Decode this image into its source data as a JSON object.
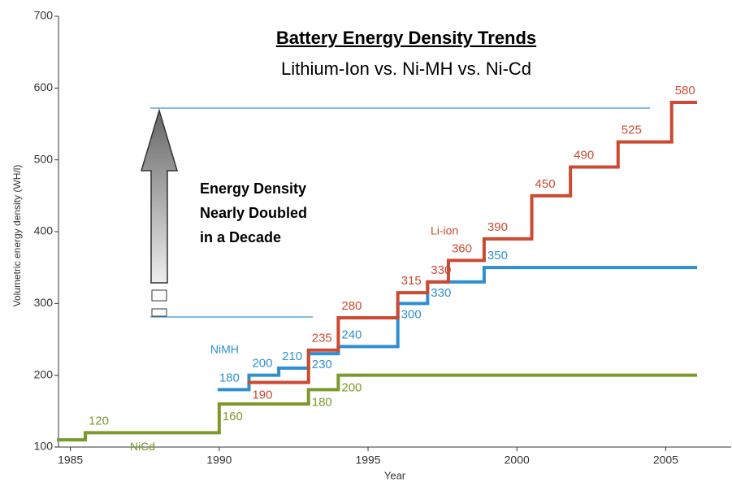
{
  "chart_data": {
    "type": "step",
    "title": "Battery Energy Density Trends",
    "subtitle": "Lithium-Ion vs. Ni-MH vs. Ni-Cd",
    "x_label": "Year",
    "y_label": "Volumetric energy density (WH/l)",
    "annotation": [
      "Energy Density",
      "Nearly Doubled",
      "in a Decade"
    ],
    "xlim": [
      1984.6,
      2007.2
    ],
    "xticks": [
      1985,
      1990,
      1995,
      2000,
      2005
    ],
    "ylim": [
      100,
      700
    ],
    "yticks": [
      100,
      200,
      300,
      400,
      500,
      600,
      700
    ],
    "step_end": 2006,
    "series": [
      {
        "name": "NiCd",
        "color": "#7b9a2b",
        "x": [
          1984.6,
          1985.5,
          1990,
          1993,
          1994
        ],
        "values": [
          110,
          120,
          160,
          180,
          200
        ],
        "value_labels": [
          null,
          "120",
          "160",
          "180",
          "200"
        ]
      },
      {
        "name": "NiMH",
        "color": "#2f8fd2",
        "x": [
          1990,
          1991,
          1992,
          1993,
          1994,
          1996,
          1997,
          1998.9
        ],
        "values": [
          180,
          200,
          210,
          230,
          240,
          300,
          330,
          350
        ]
      },
      {
        "name": "Li-ion",
        "color": "#cc4a32",
        "x": [
          1991,
          1993,
          1994,
          1996,
          1997,
          1997.7,
          1998.9,
          2000.5,
          2001.8,
          2003.4,
          2005.2
        ],
        "values": [
          190,
          235,
          280,
          315,
          330,
          360,
          390,
          450,
          490,
          525,
          580
        ]
      }
    ]
  }
}
